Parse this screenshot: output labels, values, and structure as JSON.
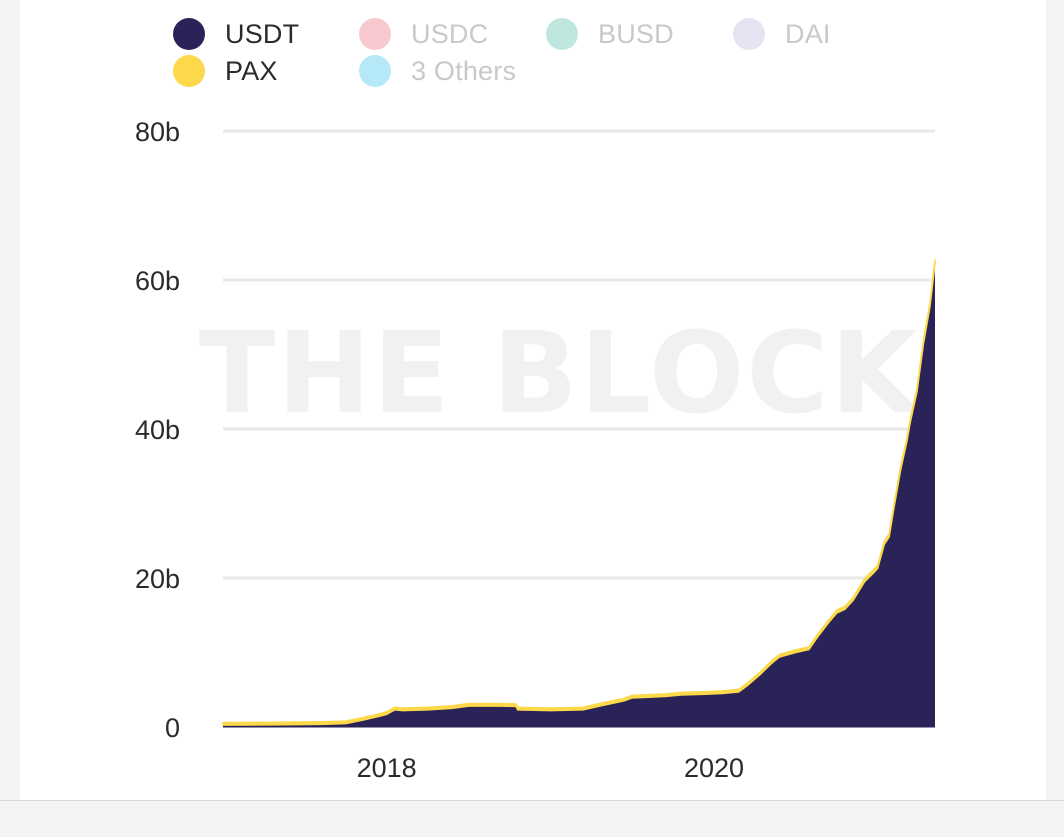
{
  "legend": [
    {
      "label": "USDT",
      "color": "#2a2357",
      "active": true
    },
    {
      "label": "USDC",
      "color": "#f8c8cf",
      "active": false
    },
    {
      "label": "BUSD",
      "color": "#bfe6df",
      "active": false
    },
    {
      "label": "DAI",
      "color": "#e4e4f2",
      "active": false
    },
    {
      "label": "PAX",
      "color": "#fcd94a",
      "active": true
    },
    {
      "label": "3 Others",
      "color": "#b6e9f8",
      "active": false
    }
  ],
  "watermark": "THE BLOCK",
  "chart_data": {
    "type": "area",
    "stacked": true,
    "x_unit": "year",
    "y_unit": "USD billions",
    "xlim": [
      2017.0,
      2021.35
    ],
    "ylim": [
      0,
      80
    ],
    "yticks": [
      {
        "value": 0,
        "label": "0"
      },
      {
        "value": 20,
        "label": "20b"
      },
      {
        "value": 40,
        "label": "40b"
      },
      {
        "value": 60,
        "label": "60b"
      },
      {
        "value": 80,
        "label": "80b"
      }
    ],
    "xticks": [
      {
        "value": 2018.0,
        "label": "2018"
      },
      {
        "value": 2020.0,
        "label": "2020"
      }
    ],
    "grid": true,
    "legend_position": "top-left",
    "series": [
      {
        "name": "USDT",
        "color": "#2a2357",
        "points": [
          [
            2017.0,
            0.25
          ],
          [
            2017.4,
            0.3
          ],
          [
            2017.6,
            0.35
          ],
          [
            2017.75,
            0.45
          ],
          [
            2017.85,
            0.9
          ],
          [
            2017.95,
            1.4
          ],
          [
            2018.0,
            1.7
          ],
          [
            2018.05,
            2.3
          ],
          [
            2018.1,
            2.2
          ],
          [
            2018.25,
            2.3
          ],
          [
            2018.4,
            2.5
          ],
          [
            2018.5,
            2.8
          ],
          [
            2018.7,
            2.8
          ],
          [
            2018.79,
            2.75
          ],
          [
            2018.8,
            2.3
          ],
          [
            2019.0,
            2.2
          ],
          [
            2019.2,
            2.3
          ],
          [
            2019.3,
            2.8
          ],
          [
            2019.45,
            3.5
          ],
          [
            2019.5,
            3.9
          ],
          [
            2019.6,
            4.0
          ],
          [
            2019.7,
            4.1
          ],
          [
            2019.8,
            4.3
          ],
          [
            2019.95,
            4.4
          ],
          [
            2020.05,
            4.5
          ],
          [
            2020.15,
            4.7
          ],
          [
            2020.2,
            5.5
          ],
          [
            2020.28,
            7.0
          ],
          [
            2020.35,
            8.5
          ],
          [
            2020.4,
            9.4
          ],
          [
            2020.5,
            10.0
          ],
          [
            2020.58,
            10.4
          ],
          [
            2020.63,
            12.0
          ],
          [
            2020.7,
            14.0
          ],
          [
            2020.75,
            15.3
          ],
          [
            2020.8,
            15.8
          ],
          [
            2020.85,
            17.0
          ],
          [
            2020.92,
            19.5
          ],
          [
            2020.98,
            20.8
          ],
          [
            2021.0,
            21.3
          ],
          [
            2021.04,
            24.5
          ],
          [
            2021.07,
            25.5
          ],
          [
            2021.1,
            29.5
          ],
          [
            2021.14,
            34.5
          ],
          [
            2021.18,
            38.5
          ],
          [
            2021.2,
            41.0
          ],
          [
            2021.24,
            45.0
          ],
          [
            2021.28,
            51.5
          ],
          [
            2021.3,
            54.0
          ],
          [
            2021.32,
            56.5
          ],
          [
            2021.35,
            62.2
          ]
        ]
      },
      {
        "name": "PAX",
        "color": "#fcd94a",
        "points": [
          [
            2017.0,
            0.0
          ],
          [
            2018.6,
            0.1
          ],
          [
            2019.5,
            0.2
          ],
          [
            2020.2,
            0.3
          ],
          [
            2020.8,
            0.4
          ],
          [
            2021.35,
            0.5
          ]
        ]
      }
    ]
  }
}
